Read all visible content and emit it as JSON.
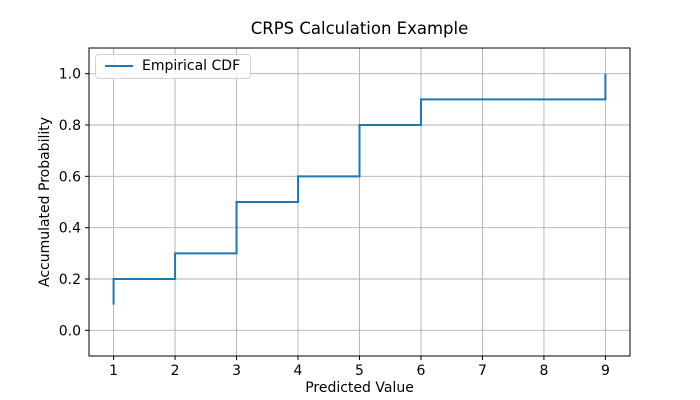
{
  "figure": {
    "title": "CRPS Calculation Example"
  },
  "legend": {
    "label": "Empirical CDF",
    "position": "upper left"
  },
  "colors": {
    "line": "#1f77b4",
    "grid": "#b0b0b0",
    "spine": "#000000",
    "background": "#ffffff",
    "legend_border": "#d4d4d4"
  },
  "chart_data": {
    "type": "line",
    "style": "step-post",
    "title": "CRPS Calculation Example",
    "xlabel": "Predicted Value",
    "ylabel": "Accumulated Probability",
    "xlim": [
      0.6,
      9.4
    ],
    "ylim": [
      -0.1,
      1.1
    ],
    "xticks": [
      1,
      2,
      3,
      4,
      5,
      6,
      7,
      8,
      9
    ],
    "xtick_labels": [
      "1",
      "2",
      "3",
      "4",
      "5",
      "6",
      "7",
      "8",
      "9"
    ],
    "yticks": [
      0.0,
      0.2,
      0.4,
      0.6,
      0.8,
      1.0
    ],
    "ytick_labels": [
      "0.0",
      "0.2",
      "0.4",
      "0.6",
      "0.8",
      "1.0"
    ],
    "grid": true,
    "legend_position": "upper left",
    "series": [
      {
        "name": "Empirical CDF",
        "color": "#1f77b4",
        "points": [
          [
            1,
            0.1
          ],
          [
            1,
            0.2
          ],
          [
            2,
            0.2
          ],
          [
            2,
            0.3
          ],
          [
            3,
            0.3
          ],
          [
            3,
            0.5
          ],
          [
            4,
            0.5
          ],
          [
            4,
            0.6
          ],
          [
            5,
            0.6
          ],
          [
            5,
            0.8
          ],
          [
            6,
            0.8
          ],
          [
            6,
            0.9
          ],
          [
            9,
            0.9
          ],
          [
            9,
            1.0
          ]
        ]
      }
    ]
  }
}
